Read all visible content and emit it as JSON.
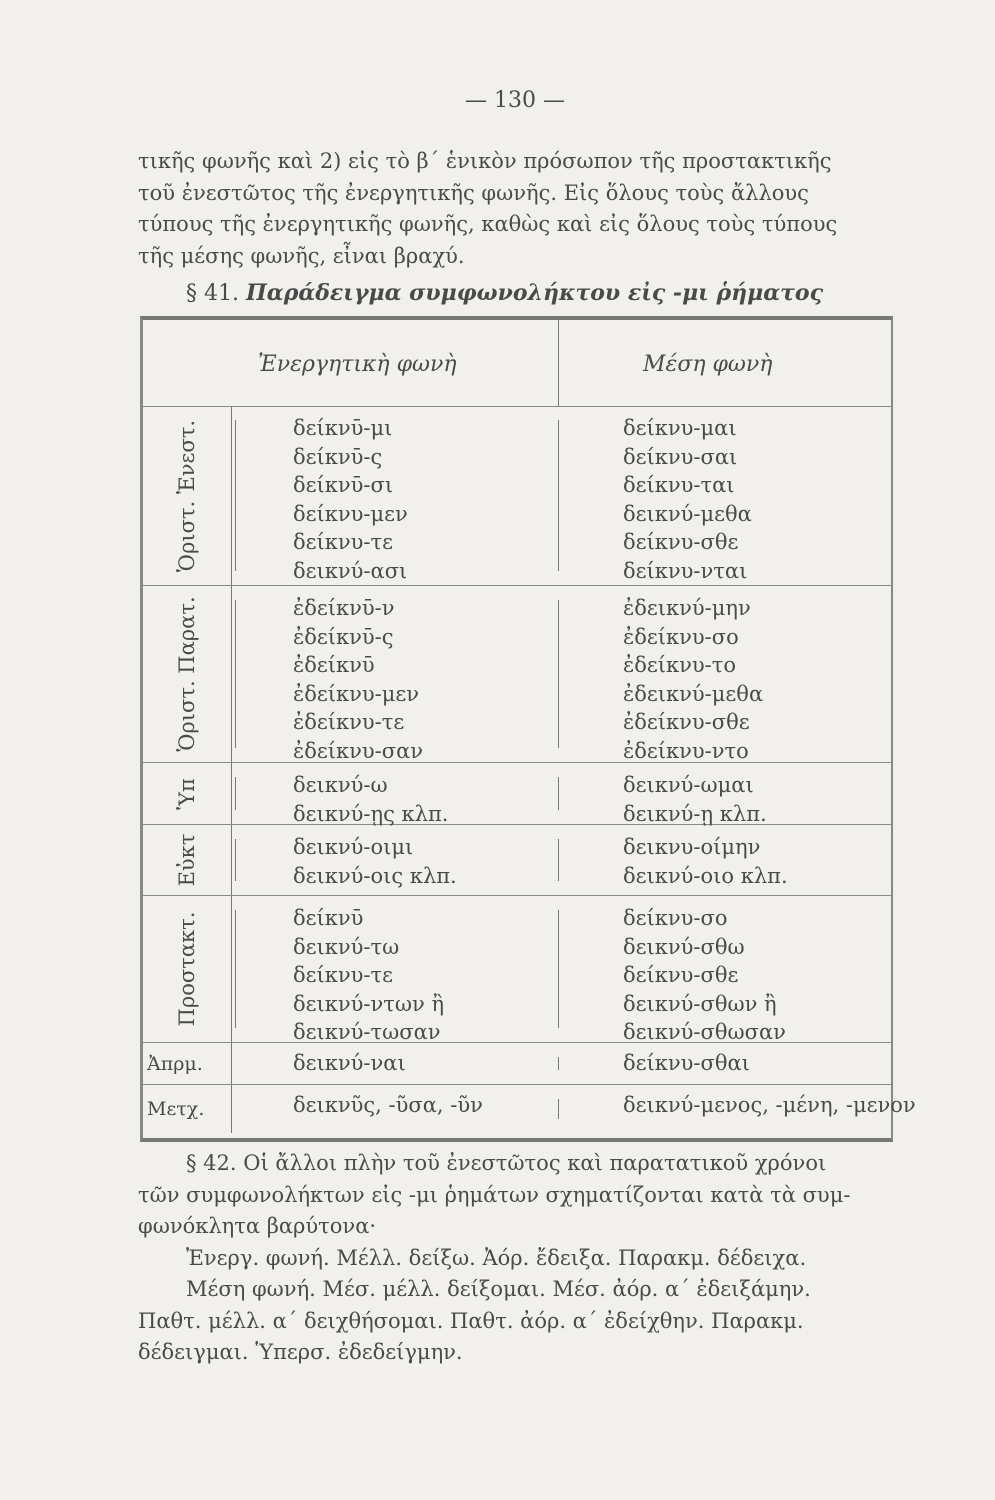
{
  "page_number": "— 130 —",
  "intro_lines": [
    "τικῆς φωνῆς καὶ 2) εἰς τὸ β΄ ἑνικὸν πρόσωπον τῆς προστακτικῆς",
    "τοῦ ἐνεστῶτος τῆς ἐνεργητικῆς φωνῆς. Εἰς ὅλους τοὺς ἄλλους",
    "τύπους τῆς ἐνεργητικῆς φωνῆς, καθὼς καὶ εἰς ὅλους τοὺς τύπους",
    "τῆς μέσης φωνῆς, εἶναι βραχύ."
  ],
  "section41": {
    "number": "§ 41.",
    "title": "Παράδειγμα συμφωνολήκτου εἰς -μι ῥήματος"
  },
  "table": {
    "headers": {
      "active": "Ἐνεργητικὴ φωνὴ",
      "middle": "Μέση φωνὴ"
    },
    "rows": [
      {
        "label": "Ὁριστ. Ἐνεστ.",
        "active": [
          "δείκνῡ-μι",
          "δείκνῡ-ς",
          "δείκνῡ-σι",
          "δείκνυ-μεν",
          "δείκνυ-τε",
          "δεικνύ-ασι"
        ],
        "middle": [
          "δείκνυ-μαι",
          "δείκνυ-σαι",
          "δείκνυ-ται",
          "δεικνύ-μεθα",
          "δείκνυ-σθε",
          "δείκνυ-νται"
        ]
      },
      {
        "label": "Ὁριστ. Παρατ.",
        "active": [
          "ἐδείκνῡ-ν",
          "ἐδείκνῡ-ς",
          "ἐδείκνῡ",
          "ἐδείκνυ-μεν",
          "ἐδείκνυ-τε",
          "ἐδείκνυ-σαν"
        ],
        "middle": [
          "ἐδεικνύ-μην",
          "ἐδείκνυ-σο",
          "ἐδείκνυ-το",
          "ἐδεικνύ-μεθα",
          "ἐδείκνυ-σθε",
          "ἐδείκνυ-ντο"
        ]
      },
      {
        "label": "Ὑπ",
        "active": [
          "δεικνύ-ω",
          "δεικνύ-ῃς κλπ."
        ],
        "middle": [
          "δεικνύ-ωμαι",
          "δεικνύ-ῃ κλπ."
        ]
      },
      {
        "label": "Εὐκτ",
        "active": [
          "δεικνύ-οιμι",
          "δεικνύ-οις κλπ."
        ],
        "middle": [
          "δεικνυ-οίμην",
          "δεικνύ-οιο κλπ."
        ]
      },
      {
        "label": "Προστακτ.",
        "active": [
          "δείκνῡ",
          "δεικνύ-τω",
          "δείκνυ-τε",
          "δεικνύ-ντων ἢ",
          "δεικνύ-τωσαν"
        ],
        "middle": [
          "δείκνυ-σο",
          "δεικνύ-σθω",
          "δείκνυ-σθε",
          "δεικνύ-σθων ἢ",
          "δεικνύ-σθωσαν"
        ]
      },
      {
        "label": "Ἀπρμ.",
        "active": [
          "δεικνύ-ναι"
        ],
        "middle": [
          "δείκνυ-σθαι"
        ]
      },
      {
        "label": "Μετχ.",
        "active": [
          "δεικνῦς, -ῦσα, -ῦν"
        ],
        "middle": [
          "δεικνύ-μενος, -μένη, -μενον"
        ]
      }
    ]
  },
  "section42_lines": [
    "§ 42. Οἱ ἄλλοι πλὴν τοῦ ἐνεστῶτος καὶ παρατατικοῦ χρόνοι",
    "τῶν συμφωνολήκτων εἰς -μι ῥημάτων σχηματίζονται κατὰ τὰ συμ-",
    "φωνόκλητα βαρύτονα·",
    "Ἐνεργ. φωνή. Μέλλ. δείξω. Ἀόρ. ἔδειξα. Παρακμ. δέδειχα.",
    "Μέση φωνή. Μέσ. μέλλ. δείξομαι. Μέσ. ἀόρ. α΄ ἐδειξάμην.",
    "Παθτ. μέλλ. α΄ δειχθήσομαι. Παθτ. ἀόρ. α΄ ἐδείχθην. Παρακμ.",
    "δέδειγμαι. Ὑπερσ. ἐδεδείγμην."
  ]
}
